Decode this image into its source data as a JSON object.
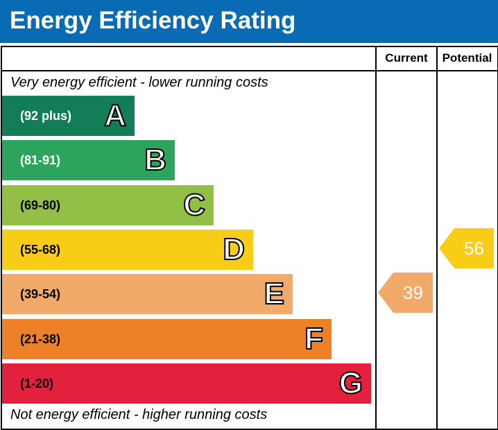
{
  "title": "Energy Efficiency Rating",
  "columns": {
    "current": "Current",
    "potential": "Potential"
  },
  "top_note": "Very energy efficient - lower running costs",
  "bottom_note": "Not energy efficient - higher running costs",
  "chart_data": {
    "type": "bar",
    "bands": [
      {
        "letter": "A",
        "range": "(92 plus)",
        "color": "#137d57",
        "range_text_color": "#ffffff"
      },
      {
        "letter": "B",
        "range": "(81-91)",
        "color": "#2ba55c",
        "range_text_color": "#ffffff"
      },
      {
        "letter": "C",
        "range": "(69-80)",
        "color": "#92bf45",
        "range_text_color": "#000000"
      },
      {
        "letter": "D",
        "range": "(55-68)",
        "color": "#f7cd17",
        "range_text_color": "#000000"
      },
      {
        "letter": "E",
        "range": "(39-54)",
        "color": "#f2aa6b",
        "range_text_color": "#000000"
      },
      {
        "letter": "F",
        "range": "(21-38)",
        "color": "#ed8127",
        "range_text_color": "#000000"
      },
      {
        "letter": "G",
        "range": "(1-20)",
        "color": "#e3213c",
        "range_text_color": "#000000"
      }
    ],
    "current": {
      "value": 39,
      "band": "E",
      "color": "#f2aa6b"
    },
    "potential": {
      "value": 56,
      "band": "D",
      "color": "#f7cd17"
    }
  }
}
